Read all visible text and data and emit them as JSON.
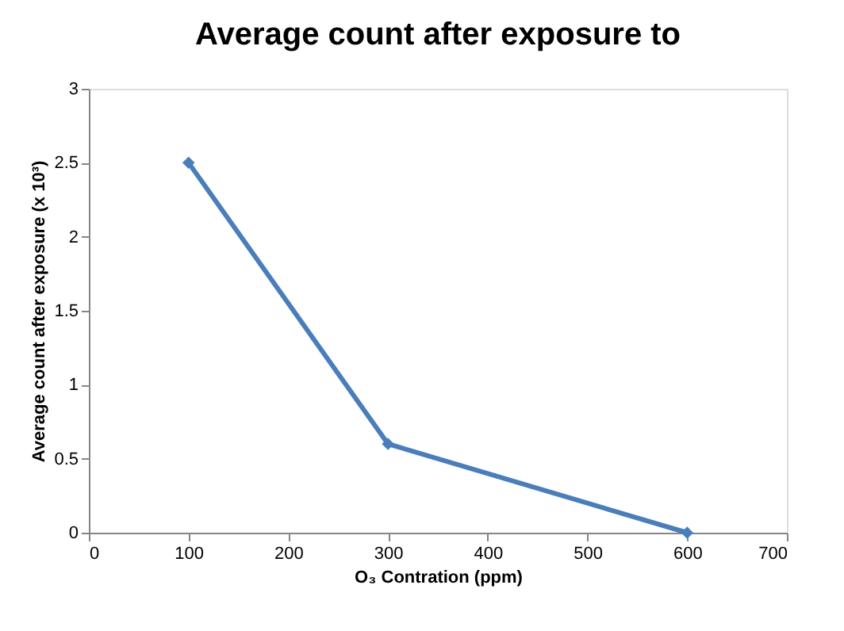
{
  "chart_data": {
    "type": "line",
    "title": "Average count after exposure to",
    "xlabel": "O₃ Contration (ppm)",
    "ylabel": "Average count after exposure (x 10³)",
    "x": [
      100,
      300,
      600
    ],
    "series": [
      {
        "color": "#4a7ebb",
        "values": [
          2.5,
          0.6,
          0
        ]
      }
    ],
    "xlim": [
      0,
      700
    ],
    "xticks": [
      0,
      100,
      200,
      300,
      400,
      500,
      600,
      700
    ],
    "ylim": [
      0,
      3
    ],
    "yticks": [
      0,
      0.5,
      1,
      1.5,
      2,
      2.5,
      3
    ],
    "grid": false,
    "marker": "diamond",
    "line_style": "solid"
  }
}
